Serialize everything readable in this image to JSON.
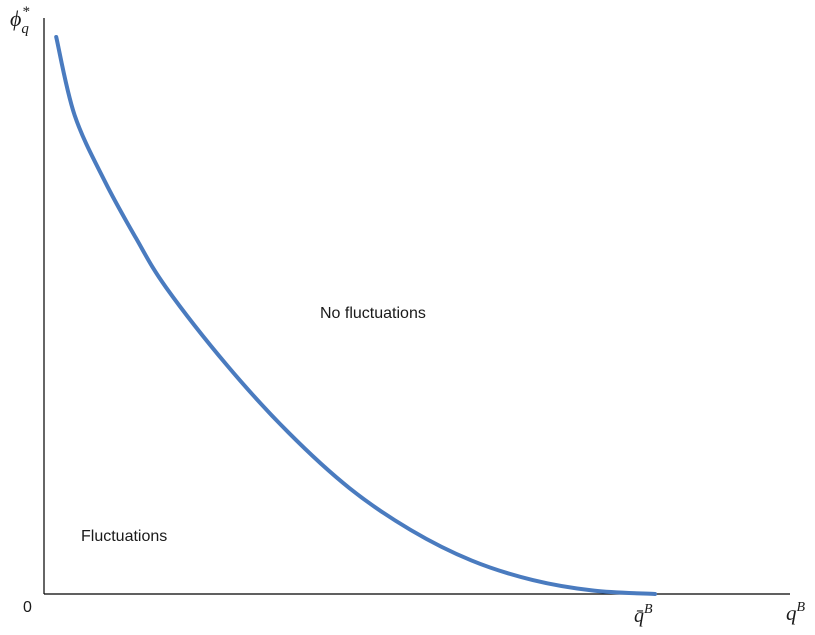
{
  "chart_data": {
    "type": "line",
    "title": "",
    "axes": {
      "x": {
        "label": "q",
        "label_superscript": "B",
        "tick_labels": [
          "q̄",
          "0"
        ],
        "qbar_tick": {
          "base": "q̄",
          "superscript": "B"
        },
        "range": [
          0,
          1.28
        ]
      },
      "y": {
        "label": "ϕ",
        "label_subscript": "q",
        "label_superscript": "*",
        "range": [
          0,
          1.0
        ]
      },
      "origin_label": "0"
    },
    "grid": false,
    "legend": "none",
    "series": [
      {
        "color": "#4a7bbf",
        "x": [
          0.02,
          0.05,
          0.1,
          0.15,
          0.2,
          0.3,
          0.4,
          0.5,
          0.6,
          0.7,
          0.8,
          0.9,
          1.0
        ],
        "y": [
          1.0,
          0.86,
          0.74,
          0.64,
          0.55,
          0.41,
          0.29,
          0.19,
          0.115,
          0.06,
          0.025,
          0.006,
          0.0
        ]
      }
    ],
    "annotations": [
      {
        "text": "No fluctuations",
        "x": 0.55,
        "y": 0.5
      },
      {
        "text": "Fluctuations",
        "x": 0.15,
        "y": 0.1
      }
    ]
  }
}
